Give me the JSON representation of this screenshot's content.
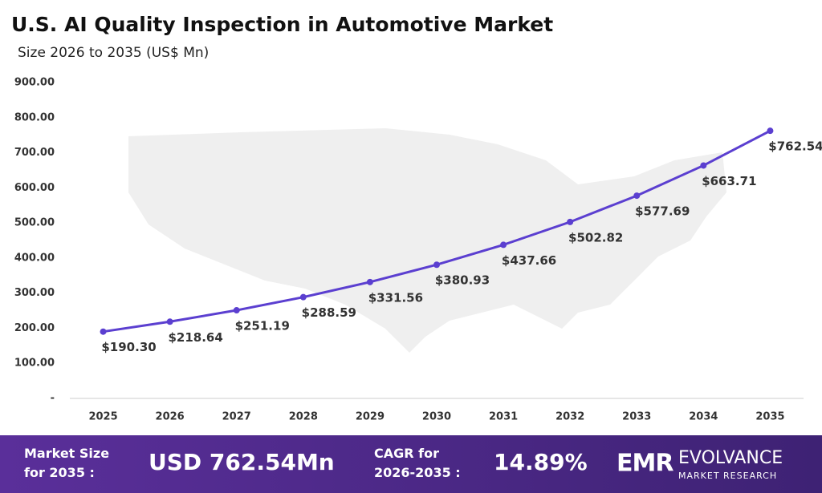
{
  "chart_data": {
    "type": "line",
    "title": "U.S. AI Quality Inspection in Automotive Market",
    "subtitle": "Size 2026 to 2035 (US$ Mn)",
    "categories": [
      "2025",
      "2026",
      "2027",
      "2028",
      "2029",
      "2030",
      "2031",
      "2032",
      "2033",
      "2034",
      "2035"
    ],
    "values": [
      190.3,
      218.64,
      251.19,
      288.59,
      331.56,
      380.93,
      437.66,
      502.82,
      577.69,
      663.71,
      762.54
    ],
    "value_labels": [
      "$190.30",
      "$218.64",
      "$251.19",
      "$288.59",
      "$331.56",
      "$380.93",
      "$437.66",
      "$502.82",
      "$577.69",
      "$663.71",
      "$762.54"
    ],
    "color": "#5b3fd0",
    "ylim": [
      0,
      900
    ],
    "yticks": [
      {
        "value": 0,
        "label": "-"
      },
      {
        "value": 100,
        "label": "100.00"
      },
      {
        "value": 200,
        "label": "200.00"
      },
      {
        "value": 300,
        "label": "300.00"
      },
      {
        "value": 400,
        "label": "400.00"
      },
      {
        "value": 500,
        "label": "500.00"
      },
      {
        "value": 600,
        "label": "600.00"
      },
      {
        "value": 700,
        "label": "700.00"
      },
      {
        "value": 800,
        "label": "800.00"
      },
      {
        "value": 900,
        "label": "900.00"
      }
    ],
    "grid": false
  },
  "footer": {
    "market_size_label": "Market Size for 2035 :",
    "market_size_value": "USD 762.54Mn",
    "cagr_label": "CAGR for 2026-2035 :",
    "cagr_value": "14.89%",
    "logo": "EMR",
    "brand": "EVOLVANCE",
    "brand_sub": "MARKET RESEARCH"
  }
}
